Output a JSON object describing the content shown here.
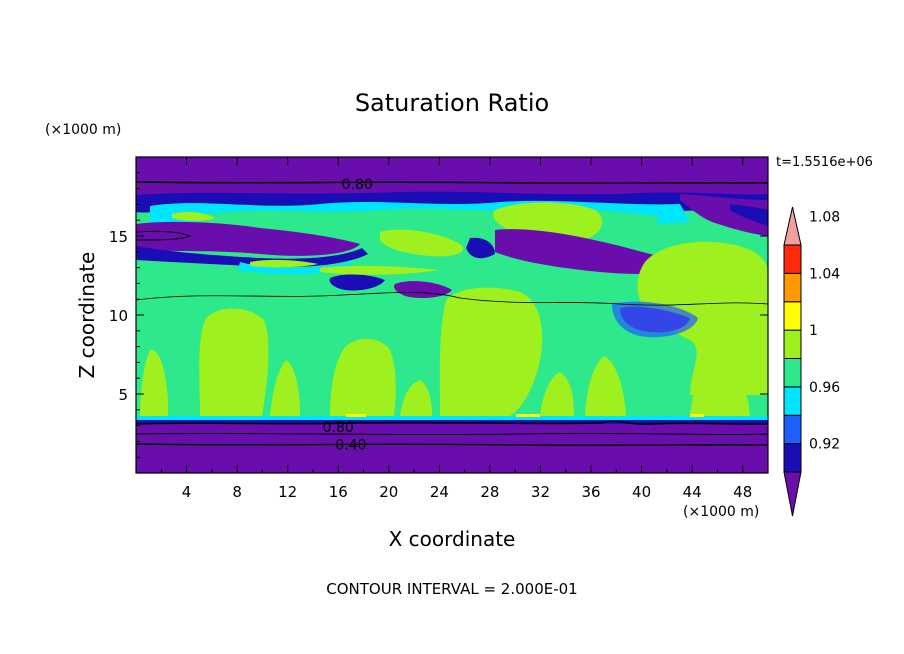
{
  "chart_data": {
    "type": "heatmap",
    "title": "Saturation Ratio",
    "xlabel": "X coordinate",
    "ylabel": "Z coordinate",
    "x_unit": "(×1000 m)",
    "y_unit": "(×1000 m)",
    "time_label": "t=1.5516e+06",
    "footer": "CONTOUR INTERVAL = 2.000E-01",
    "xlim": [
      0,
      50
    ],
    "ylim": [
      0,
      20
    ],
    "x_ticks": [
      4,
      8,
      12,
      16,
      20,
      24,
      28,
      32,
      36,
      40,
      44,
      48
    ],
    "y_ticks": [
      5,
      10,
      15
    ],
    "contour_labels": [
      {
        "text": "0.80",
        "x": 17.5,
        "y": 18.3
      },
      {
        "text": "0.80",
        "x": 16,
        "y": 2.9
      },
      {
        "text": "0.40",
        "x": 17,
        "y": 1.8
      }
    ],
    "colorbar": {
      "labels": [
        "0.92",
        "0.96",
        "1",
        "1.04",
        "1.08"
      ],
      "colors": [
        "#6a0dad",
        "#1a0db5",
        "#1e5fff",
        "#00e5ff",
        "#2ee88c",
        "#9ef01e",
        "#ffff00",
        "#ff9900",
        "#ff2a0e",
        "#f0a0a0"
      ]
    }
  }
}
